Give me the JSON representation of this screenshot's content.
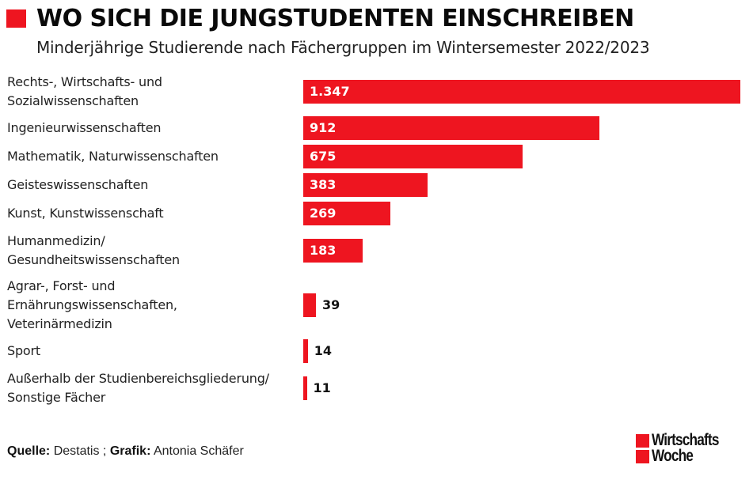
{
  "header": {
    "title": "WO SICH DIE JUNGSTUDENTEN EINSCHREIBEN",
    "subtitle": "Minderjährige Studierende nach Fächergruppen im Wintersemester 2022/2023"
  },
  "colors": {
    "accent": "#ee1520",
    "text": "#222222"
  },
  "chart_data": {
    "type": "bar",
    "orientation": "horizontal",
    "title": "WO SICH DIE JUNGSTUDENTEN EINSCHREIBEN",
    "subtitle": "Minderjährige Studierende nach Fächergruppen im Wintersemester 2022/2023",
    "xlabel": "",
    "ylabel": "",
    "xlim": [
      0,
      1347
    ],
    "grid": false,
    "categories": [
      "Rechts-, Wirtschafts- und Sozialwissenschaften",
      "Ingenieurwissenschaften",
      "Mathematik, Naturwissenschaften",
      "Geisteswissenschaften",
      "Kunst, Kunstwissenschaft",
      "Humanmedizin/ Gesundheitswissenschaften",
      "Agrar-, Forst- und Ernährungswissenschaften, Veterinärmedizin",
      "Sport",
      "Außerhalb der Studienbereichsgliederung/ Sonstige Fächer"
    ],
    "category_lines": [
      [
        "Rechts-, Wirtschafts- und",
        "Sozialwissenschaften"
      ],
      [
        "Ingenieurwissenschaften"
      ],
      [
        "Mathematik, Naturwissenschaften"
      ],
      [
        "Geisteswissenschaften"
      ],
      [
        "Kunst, Kunstwissenschaft"
      ],
      [
        "Humanmedizin/",
        "Gesundheitswissenschaften"
      ],
      [
        "Agrar-, Forst- und",
        "Ernährungswissenschaften,",
        "Veterinärmedizin"
      ],
      [
        "Sport"
      ],
      [
        "Außerhalb der Studienbereichsgliederung/",
        "Sonstige Fächer"
      ]
    ],
    "values": [
      1347,
      912,
      675,
      383,
      269,
      183,
      39,
      14,
      11
    ],
    "value_labels": [
      "1.347",
      "912",
      "675",
      "383",
      "269",
      "183",
      "39",
      "14",
      "11"
    ],
    "color": "#ee1520"
  },
  "footer": {
    "source_label": "Quelle:",
    "source_value": "Destatis ;",
    "graphic_label": "Grafik:",
    "graphic_value": "Antonia Schäfer"
  },
  "logo": {
    "line1": "Wirtschafts",
    "line2": "Woche"
  }
}
